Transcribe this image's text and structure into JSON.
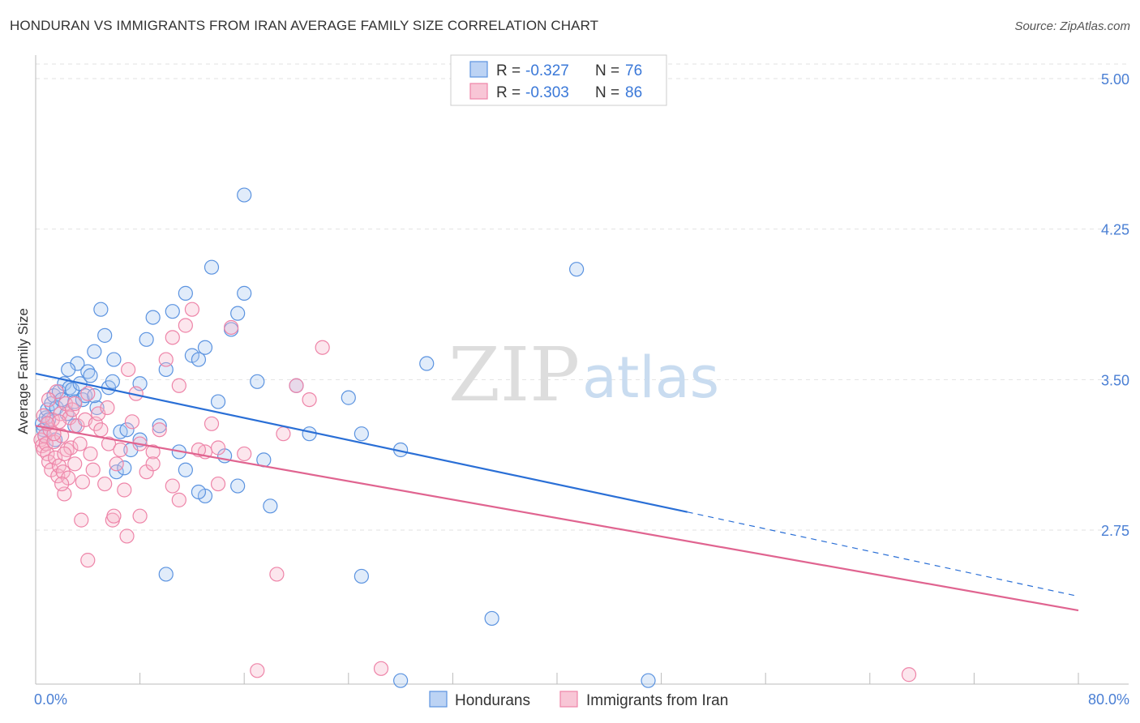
{
  "title": "HONDURAN VS IMMIGRANTS FROM IRAN AVERAGE FAMILY SIZE CORRELATION CHART",
  "source": "Source: ZipAtlas.com",
  "watermark": {
    "zip": "ZIP",
    "atlas": "atlas"
  },
  "colors": {
    "blue": "#5b93e0",
    "blue_line": "#2a6fd6",
    "pink": "#ee84a8",
    "pink_line": "#e06490"
  },
  "chart_data": {
    "type": "scatter",
    "ylabel": "Average Family Size",
    "xlim": [
      0,
      80
    ],
    "ylim": [
      2.0,
      5.1
    ],
    "x_tick_labels": {
      "min": "0.0%",
      "max": "80.0%"
    },
    "y_ticks": [
      {
        "value": 2.75,
        "label": "2.75"
      },
      {
        "value": 3.5,
        "label": "3.50"
      },
      {
        "value": 4.25,
        "label": "4.25"
      },
      {
        "value": 5.0,
        "label": "5.00"
      }
    ],
    "legend": {
      "rows": [
        {
          "r_label": "R =",
          "r_value": "-0.327",
          "n_label": "N =",
          "n_value": "76"
        },
        {
          "r_label": "R =",
          "r_value": "-0.303",
          "n_label": "N =",
          "n_value": "86"
        }
      ]
    },
    "series": [
      {
        "name": "Hondurans",
        "color": "#5b93e0",
        "trend": {
          "x0": 0,
          "y0": 3.53,
          "x1": 50,
          "y1": 2.84,
          "dash_to_x": 80,
          "dash_to_y": 2.42
        },
        "points": [
          [
            0.5,
            3.28
          ],
          [
            0.6,
            3.25
          ],
          [
            0.7,
            3.22
          ],
          [
            0.8,
            3.31
          ],
          [
            0.9,
            3.35
          ],
          [
            1.0,
            3.3
          ],
          [
            1.2,
            3.38
          ],
          [
            1.4,
            3.42
          ],
          [
            1.6,
            3.36
          ],
          [
            1.8,
            3.44
          ],
          [
            2.0,
            3.4
          ],
          [
            2.2,
            3.48
          ],
          [
            2.4,
            3.33
          ],
          [
            2.6,
            3.46
          ],
          [
            2.8,
            3.45
          ],
          [
            3.0,
            3.39
          ],
          [
            3.2,
            3.58
          ],
          [
            3.4,
            3.48
          ],
          [
            3.6,
            3.4
          ],
          [
            3.8,
            3.42
          ],
          [
            4.0,
            3.54
          ],
          [
            4.2,
            3.52
          ],
          [
            4.5,
            3.64
          ],
          [
            4.7,
            3.36
          ],
          [
            5.0,
            3.85
          ],
          [
            5.3,
            3.72
          ],
          [
            5.6,
            3.46
          ],
          [
            5.9,
            3.49
          ],
          [
            6.2,
            3.04
          ],
          [
            6.5,
            3.24
          ],
          [
            6.8,
            3.06
          ],
          [
            7.0,
            3.25
          ],
          [
            7.3,
            3.15
          ],
          [
            8.0,
            3.48
          ],
          [
            8.5,
            3.7
          ],
          [
            9.0,
            3.81
          ],
          [
            9.5,
            3.27
          ],
          [
            10.0,
            3.55
          ],
          [
            10.5,
            3.84
          ],
          [
            11.0,
            3.14
          ],
          [
            11.5,
            3.93
          ],
          [
            12.0,
            3.62
          ],
          [
            12.5,
            3.6
          ],
          [
            13.0,
            3.66
          ],
          [
            13.5,
            4.06
          ],
          [
            14.0,
            3.39
          ],
          [
            14.5,
            3.12
          ],
          [
            15.0,
            3.75
          ],
          [
            15.5,
            3.83
          ],
          [
            16.0,
            3.93
          ],
          [
            17.0,
            3.49
          ],
          [
            17.5,
            3.1
          ],
          [
            18.0,
            2.87
          ],
          [
            20.0,
            3.47
          ],
          [
            21.0,
            3.23
          ],
          [
            24.0,
            3.41
          ],
          [
            25.0,
            3.23
          ],
          [
            28.0,
            3.15
          ],
          [
            30.0,
            3.58
          ],
          [
            35.0,
            2.31
          ],
          [
            41.5,
            4.05
          ],
          [
            16.0,
            4.42
          ],
          [
            10.0,
            2.53
          ],
          [
            25.0,
            2.52
          ],
          [
            28.0,
            2.0
          ],
          [
            47.0,
            2.0
          ],
          [
            11.5,
            3.05
          ],
          [
            13.0,
            2.92
          ],
          [
            15.5,
            2.97
          ],
          [
            12.5,
            2.94
          ],
          [
            8.0,
            3.2
          ],
          [
            2.5,
            3.55
          ],
          [
            1.5,
            3.2
          ],
          [
            3.0,
            3.27
          ],
          [
            4.5,
            3.42
          ],
          [
            6.0,
            3.6
          ]
        ]
      },
      {
        "name": "Immigrants from Iran",
        "color": "#ee84a8",
        "trend": {
          "x0": 0,
          "y0": 3.27,
          "x1": 80,
          "y1": 2.35
        },
        "points": [
          [
            0.4,
            3.2
          ],
          [
            0.5,
            3.17
          ],
          [
            0.6,
            3.15
          ],
          [
            0.7,
            3.22
          ],
          [
            0.8,
            3.18
          ],
          [
            0.9,
            3.13
          ],
          [
            1.0,
            3.09
          ],
          [
            1.1,
            3.25
          ],
          [
            1.2,
            3.05
          ],
          [
            1.3,
            3.3
          ],
          [
            1.4,
            3.19
          ],
          [
            1.5,
            3.11
          ],
          [
            1.6,
            3.44
          ],
          [
            1.7,
            3.02
          ],
          [
            1.8,
            3.07
          ],
          [
            1.9,
            3.33
          ],
          [
            2.0,
            3.22
          ],
          [
            2.1,
            3.04
          ],
          [
            2.2,
            2.93
          ],
          [
            2.3,
            3.38
          ],
          [
            2.4,
            3.15
          ],
          [
            2.5,
            3.01
          ],
          [
            2.6,
            3.31
          ],
          [
            2.7,
            3.16
          ],
          [
            2.8,
            3.35
          ],
          [
            3.0,
            3.08
          ],
          [
            3.2,
            3.27
          ],
          [
            3.4,
            3.18
          ],
          [
            3.6,
            2.99
          ],
          [
            3.8,
            3.3
          ],
          [
            4.0,
            3.43
          ],
          [
            4.2,
            3.13
          ],
          [
            4.4,
            3.05
          ],
          [
            4.6,
            3.28
          ],
          [
            4.8,
            3.33
          ],
          [
            5.0,
            3.25
          ],
          [
            5.3,
            2.98
          ],
          [
            5.6,
            3.18
          ],
          [
            5.9,
            2.8
          ],
          [
            6.2,
            3.08
          ],
          [
            6.5,
            3.15
          ],
          [
            6.8,
            2.95
          ],
          [
            7.1,
            3.55
          ],
          [
            7.4,
            3.29
          ],
          [
            7.7,
            3.43
          ],
          [
            8.0,
            3.18
          ],
          [
            8.5,
            3.04
          ],
          [
            9.0,
            3.14
          ],
          [
            9.5,
            3.25
          ],
          [
            10.0,
            3.6
          ],
          [
            10.5,
            3.71
          ],
          [
            11.0,
            3.47
          ],
          [
            11.5,
            3.77
          ],
          [
            12.0,
            3.85
          ],
          [
            13.0,
            3.14
          ],
          [
            13.5,
            3.28
          ],
          [
            14.0,
            3.16
          ],
          [
            15.0,
            3.76
          ],
          [
            16.0,
            3.13
          ],
          [
            17.0,
            2.05
          ],
          [
            18.5,
            2.53
          ],
          [
            19.0,
            3.23
          ],
          [
            20.0,
            3.47
          ],
          [
            21.0,
            3.4
          ],
          [
            22.0,
            3.66
          ],
          [
            26.5,
            2.06
          ],
          [
            67.0,
            2.03
          ],
          [
            4.0,
            2.6
          ],
          [
            7.0,
            2.72
          ],
          [
            8.0,
            2.82
          ],
          [
            10.5,
            2.97
          ],
          [
            12.5,
            3.15
          ],
          [
            3.5,
            2.8
          ],
          [
            2.2,
            3.13
          ],
          [
            1.8,
            3.29
          ],
          [
            1.0,
            3.4
          ],
          [
            0.6,
            3.32
          ],
          [
            5.5,
            3.36
          ],
          [
            6.0,
            2.82
          ],
          [
            9.0,
            3.08
          ],
          [
            3.0,
            3.38
          ],
          [
            2.0,
            2.98
          ],
          [
            1.4,
            3.23
          ],
          [
            0.9,
            3.28
          ],
          [
            11.0,
            2.9
          ],
          [
            14.0,
            2.98
          ]
        ]
      }
    ]
  }
}
